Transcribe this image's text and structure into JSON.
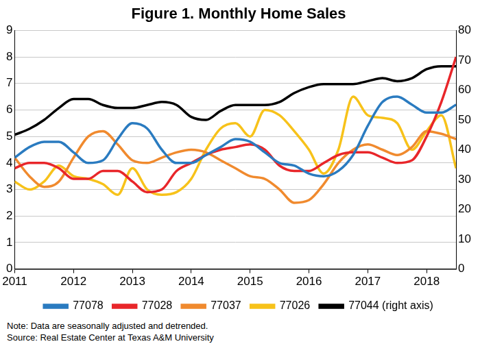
{
  "chart_data": {
    "type": "line",
    "title": "Figure 1. Monthly Home Sales",
    "notes": [
      "Note: Data are seasonally adjusted and detrended.",
      "Source: Real Estate Center at Texas A&M University"
    ],
    "x": [
      2011,
      2011.25,
      2011.5,
      2011.75,
      2012,
      2012.25,
      2012.5,
      2012.75,
      2013,
      2013.25,
      2013.5,
      2013.75,
      2014,
      2014.25,
      2014.5,
      2014.75,
      2015,
      2015.25,
      2015.5,
      2015.75,
      2016,
      2016.25,
      2016.5,
      2016.75,
      2017,
      2017.25,
      2017.5,
      2017.75,
      2018,
      2018.25,
      2018.5
    ],
    "xlim": [
      2011,
      2018.5
    ],
    "xticks": [
      2011,
      2012,
      2013,
      2014,
      2015,
      2016,
      2017,
      2018
    ],
    "ylim": [
      0,
      9
    ],
    "yticks": [
      0,
      1,
      2,
      3,
      4,
      5,
      6,
      7,
      8,
      9
    ],
    "y2lim": [
      0,
      80
    ],
    "y2ticks": [
      0,
      10,
      20,
      30,
      40,
      50,
      60,
      70,
      80
    ],
    "grid": true,
    "legend": "bottom",
    "series": [
      {
        "name": "77078",
        "color": "#2a7bc0",
        "values": [
          4.2,
          4.6,
          4.8,
          4.8,
          4.4,
          4.0,
          4.1,
          4.9,
          5.5,
          5.3,
          4.5,
          4.0,
          4.0,
          4.3,
          4.6,
          4.9,
          4.8,
          4.4,
          4.0,
          3.9,
          3.6,
          3.5,
          3.7,
          4.3,
          5.4,
          6.3,
          6.5,
          6.2,
          5.9,
          5.9,
          6.2
        ]
      },
      {
        "name": "77028",
        "color": "#e8262a",
        "values": [
          3.8,
          4.0,
          4.0,
          3.8,
          3.4,
          3.4,
          3.7,
          3.7,
          3.3,
          2.9,
          3.0,
          3.7,
          4.0,
          4.3,
          4.5,
          4.6,
          4.7,
          4.5,
          3.9,
          3.7,
          3.7,
          4.0,
          4.3,
          4.4,
          4.4,
          4.2,
          4.0,
          4.1,
          5.0,
          6.3,
          8.0
        ]
      },
      {
        "name": "77037",
        "color": "#f08a2e",
        "values": [
          4.2,
          3.5,
          3.1,
          3.3,
          4.2,
          5.0,
          5.2,
          4.7,
          4.1,
          4.0,
          4.2,
          4.4,
          4.5,
          4.4,
          4.1,
          3.8,
          3.5,
          3.4,
          3.0,
          2.5,
          2.6,
          3.2,
          4.0,
          4.5,
          4.7,
          4.5,
          4.3,
          4.6,
          5.2,
          5.1,
          4.9
        ]
      },
      {
        "name": "77026",
        "color": "#f7c21a",
        "values": [
          3.3,
          3.0,
          3.3,
          3.9,
          3.5,
          3.4,
          3.2,
          2.8,
          3.8,
          3.0,
          2.8,
          2.9,
          3.4,
          4.5,
          5.3,
          5.5,
          5.0,
          6.0,
          5.8,
          5.2,
          4.5,
          3.6,
          4.5,
          6.5,
          5.8,
          5.7,
          5.5,
          4.5,
          5.2,
          5.8,
          3.8
        ]
      },
      {
        "name": "77044 (right axis)",
        "color": "#000000",
        "axis": "y2",
        "values": [
          45,
          47,
          50,
          54,
          57,
          57,
          55,
          54,
          54,
          55,
          56,
          55,
          51,
          50,
          53,
          55,
          55,
          55,
          56,
          59,
          61,
          62,
          62,
          62,
          63,
          64,
          63,
          64,
          67,
          68,
          68
        ]
      }
    ]
  }
}
